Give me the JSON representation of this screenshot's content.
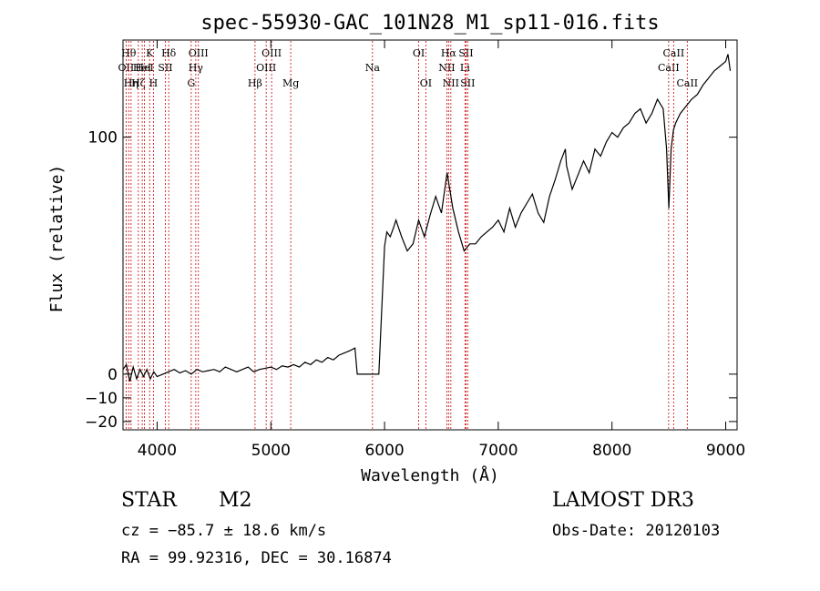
{
  "chart_data": {
    "type": "line",
    "title": "spec-55930-GAC_101N28_M1_sp11-016.fits",
    "xlabel": "Wavelength (Å)",
    "ylabel": "Flux (relative)",
    "xlim": [
      3700,
      9100
    ],
    "ylim": [
      -23.5,
      141
    ],
    "x_ticks": [
      4000,
      5000,
      6000,
      7000,
      8000,
      9000
    ],
    "x_tick_labels": [
      "4000",
      "5000",
      "6000",
      "7000",
      "8000",
      "9000"
    ],
    "y_ticks": [
      -20,
      -10,
      0,
      100
    ],
    "y_tick_labels": [
      "−20",
      "−10",
      "0",
      "100"
    ],
    "series": [
      {
        "name": "flux",
        "x": [
          3700,
          3730,
          3760,
          3790,
          3820,
          3850,
          3880,
          3910,
          3940,
          3970,
          4000,
          4050,
          4100,
          4150,
          4200,
          4250,
          4300,
          4350,
          4400,
          4450,
          4500,
          4550,
          4600,
          4650,
          4700,
          4750,
          4800,
          4850,
          4900,
          4950,
          5000,
          5050,
          5100,
          5150,
          5200,
          5250,
          5300,
          5350,
          5400,
          5450,
          5500,
          5550,
          5600,
          5650,
          5700,
          5740,
          5760,
          5780,
          5800,
          5850,
          5900,
          5950,
          6000,
          6020,
          6050,
          6080,
          6100,
          6150,
          6200,
          6250,
          6300,
          6350,
          6400,
          6450,
          6500,
          6550,
          6600,
          6650,
          6700,
          6750,
          6800,
          6850,
          6900,
          6950,
          7000,
          7050,
          7100,
          7150,
          7200,
          7250,
          7300,
          7350,
          7400,
          7450,
          7500,
          7550,
          7590,
          7600,
          7650,
          7700,
          7750,
          7800,
          7850,
          7900,
          7950,
          8000,
          8050,
          8100,
          8150,
          8200,
          8250,
          8300,
          8350,
          8400,
          8450,
          8480,
          8500,
          8520,
          8540,
          8560,
          8600,
          8650,
          8700,
          8750,
          8800,
          8850,
          8900,
          8950,
          9000,
          9020,
          9040
        ],
        "y": [
          2,
          4,
          -3,
          3,
          -2,
          2,
          -1,
          2,
          -2,
          1,
          -1,
          0,
          1,
          2,
          0.5,
          1.5,
          0,
          2,
          1,
          1.5,
          2,
          1,
          3,
          2,
          1,
          2,
          3,
          1,
          2,
          2.5,
          3,
          2,
          3.5,
          3,
          4,
          3,
          5,
          4,
          6,
          5,
          7,
          6,
          8,
          9,
          10,
          11,
          0,
          0,
          0,
          0,
          0,
          0,
          54,
          60,
          58,
          62,
          65,
          58,
          52,
          55,
          65,
          58,
          67,
          75,
          68,
          85,
          70,
          60,
          52,
          55,
          55,
          58,
          60,
          62,
          65,
          60,
          70,
          62,
          68,
          72,
          76,
          68,
          64,
          75,
          82,
          90,
          95,
          88,
          78,
          84,
          90,
          85,
          95,
          92,
          98,
          102,
          100,
          104,
          106,
          110,
          112,
          106,
          110,
          116,
          112,
          95,
          70,
          95,
          103,
          106,
          110,
          113,
          116,
          118,
          122,
          125,
          128,
          130,
          132,
          135,
          128
        ]
      }
    ],
    "line_markers": [
      {
        "wavelength": 3727,
        "label": "OII",
        "row": 2
      },
      {
        "wavelength": 3750,
        "label": "Hθ",
        "row": 1
      },
      {
        "wavelength": 3771,
        "label": "Hη",
        "row": 3
      },
      {
        "wavelength": 3835,
        "label": "Hζ",
        "row": 3
      },
      {
        "wavelength": 3869,
        "label": "HeI",
        "row": 2
      },
      {
        "wavelength": 3889,
        "label": "HeI",
        "row": 2
      },
      {
        "wavelength": 3934,
        "label": "K",
        "row": 1
      },
      {
        "wavelength": 3968,
        "label": "H",
        "row": 3
      },
      {
        "wavelength": 4072,
        "label": "SII",
        "row": 2
      },
      {
        "wavelength": 4102,
        "label": "Hδ",
        "row": 1
      },
      {
        "wavelength": 4300,
        "label": "G",
        "row": 3
      },
      {
        "wavelength": 4340,
        "label": "Hγ",
        "row": 2
      },
      {
        "wavelength": 4363,
        "label": "OIII",
        "row": 1
      },
      {
        "wavelength": 4861,
        "label": "Hβ",
        "row": 3
      },
      {
        "wavelength": 4959,
        "label": "OIII",
        "row": 2
      },
      {
        "wavelength": 5007,
        "label": "OIII",
        "row": 1
      },
      {
        "wavelength": 5175,
        "label": "Mg",
        "row": 3
      },
      {
        "wavelength": 5894,
        "label": "Na",
        "row": 2
      },
      {
        "wavelength": 6300,
        "label": "OI",
        "row": 1
      },
      {
        "wavelength": 6363,
        "label": "OI",
        "row": 3
      },
      {
        "wavelength": 6548,
        "label": "NII",
        "row": 2
      },
      {
        "wavelength": 6563,
        "label": "Hα",
        "row": 1
      },
      {
        "wavelength": 6583,
        "label": "NII",
        "row": 3
      },
      {
        "wavelength": 6707,
        "label": "Li",
        "row": 2
      },
      {
        "wavelength": 6716,
        "label": "SII",
        "row": 1
      },
      {
        "wavelength": 6731,
        "label": "SII",
        "row": 3
      },
      {
        "wavelength": 8498,
        "label": "CaII",
        "row": 2
      },
      {
        "wavelength": 8542,
        "label": "CaII",
        "row": 1
      },
      {
        "wavelength": 8662,
        "label": "CaII",
        "row": 3
      }
    ],
    "marker_color": "#cc0000",
    "line_color": "#000000"
  },
  "info": {
    "obj_class": "STAR",
    "obj_subclass": "M2",
    "survey": "LAMOST DR3",
    "cz": "cz = −85.7 ± 18.6 km/s",
    "obs_date": "Obs-Date: 20120103",
    "radec": "RA =  99.92316, DEC =  30.16874"
  }
}
